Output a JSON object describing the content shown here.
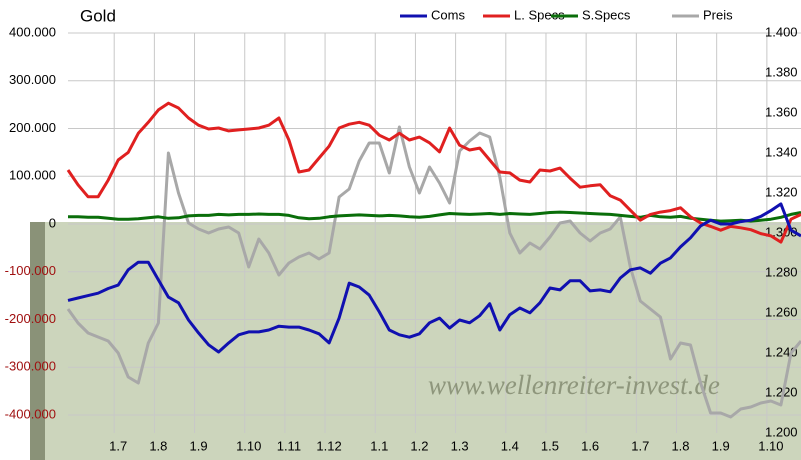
{
  "chart_data": {
    "type": "line",
    "title": "Gold",
    "watermark": "www.wellenreiter-invest.de",
    "categories": [
      null,
      null,
      null,
      null,
      null,
      "1.7",
      null,
      null,
      null,
      "1.8",
      null,
      null,
      null,
      "1.9",
      null,
      null,
      null,
      null,
      "1.10",
      null,
      null,
      null,
      "1.11",
      null,
      null,
      null,
      "1.12",
      null,
      null,
      null,
      null,
      "1.1",
      null,
      null,
      null,
      "1.2",
      null,
      null,
      null,
      "1.3",
      null,
      null,
      null,
      null,
      "1.4",
      null,
      null,
      null,
      "1.5",
      null,
      null,
      null,
      "1.6",
      null,
      null,
      null,
      null,
      "1.7",
      null,
      null,
      null,
      "1.8",
      null,
      null,
      null,
      "1.9",
      null,
      null,
      null,
      null,
      "1.10",
      null,
      null,
      null
    ],
    "series": [
      {
        "name": "Coms",
        "color": "#1010b0",
        "values": [
          -160000,
          -155000,
          -150000,
          -145000,
          -135000,
          -128000,
          -96000,
          -80000,
          -80000,
          -117000,
          -153000,
          -165000,
          -201000,
          -228000,
          -253000,
          -268000,
          -249000,
          -232000,
          -226000,
          -226000,
          -222000,
          -214000,
          -216000,
          -216000,
          -222000,
          -230000,
          -249000,
          -197000,
          -124000,
          -132000,
          -149000,
          -184000,
          -222000,
          -232000,
          -237000,
          -230000,
          -207000,
          -197000,
          -218000,
          -201000,
          -207000,
          -192000,
          -167000,
          -222000,
          -190000,
          -176000,
          -186000,
          -165000,
          -134000,
          -138000,
          -119000,
          -119000,
          -140000,
          -138000,
          -142000,
          -113000,
          -96000,
          -92000,
          -103000,
          -82000,
          -71000,
          -48000,
          -29000,
          -4000,
          8000,
          0,
          0,
          5000,
          8000,
          16000,
          28000,
          42000,
          -13000,
          -25000
        ]
      },
      {
        "name": "L. Specs",
        "color": "#e02020",
        "values": [
          113000,
          82000,
          57000,
          57000,
          92000,
          134000,
          150000,
          190000,
          213000,
          239000,
          253000,
          243000,
          222000,
          207000,
          199000,
          201000,
          195000,
          197000,
          199000,
          201000,
          207000,
          222000,
          176000,
          109000,
          113000,
          138000,
          163000,
          201000,
          209000,
          213000,
          207000,
          186000,
          176000,
          190000,
          176000,
          182000,
          170000,
          151000,
          201000,
          165000,
          155000,
          159000,
          134000,
          109000,
          107000,
          92000,
          88000,
          113000,
          111000,
          117000,
          96000,
          77000,
          80000,
          82000,
          59000,
          50000,
          29000,
          8000,
          20000,
          25000,
          28000,
          34000,
          15000,
          2000,
          -5000,
          -13000,
          -5000,
          -8000,
          -12000,
          -20000,
          -25000,
          -38000,
          10000,
          20000
        ]
      },
      {
        "name": "S.Specs",
        "color": "#0a6e0a",
        "values": [
          15000,
          15000,
          14000,
          14000,
          12000,
          10000,
          10000,
          11000,
          13000,
          15000,
          12000,
          13000,
          17000,
          18000,
          18000,
          20000,
          19000,
          20000,
          20000,
          21000,
          20000,
          20000,
          18000,
          13000,
          11000,
          12000,
          15000,
          17000,
          18000,
          19000,
          18000,
          17000,
          18000,
          17000,
          15000,
          14000,
          16000,
          19000,
          22000,
          21000,
          20000,
          21000,
          22000,
          20000,
          22000,
          21000,
          20000,
          22000,
          24000,
          25000,
          24000,
          23000,
          22000,
          21000,
          20000,
          18000,
          16000,
          14000,
          18000,
          15000,
          14000,
          16000,
          12000,
          10000,
          8000,
          6000,
          7000,
          8000,
          6000,
          8000,
          10000,
          14000,
          20000,
          24000
        ]
      },
      {
        "name": "Preis",
        "color": "#a8a8a8",
        "axis": "y2",
        "values": [
          1262,
          1255,
          1250,
          1248,
          1246,
          1240,
          1228,
          1225,
          1245,
          1255,
          1340,
          1320,
          1305,
          1302,
          1300,
          1302,
          1303,
          1300,
          1283,
          1297,
          1290,
          1279,
          1285,
          1288,
          1290,
          1287,
          1290,
          1318,
          1322,
          1336,
          1345,
          1345,
          1330,
          1353,
          1333,
          1320,
          1333,
          1325,
          1315,
          1341,
          1346,
          1350,
          1348,
          1328,
          1300,
          1290,
          1295,
          1292,
          1298,
          1305,
          1306,
          1300,
          1296,
          1300,
          1302,
          1308,
          1283,
          1266,
          1262,
          1258,
          1237,
          1245,
          1244,
          1225,
          1210,
          1210,
          1208,
          1212,
          1213,
          1215,
          1216,
          1214,
          1240,
          1246
        ]
      }
    ],
    "ylim": [
      -400000,
      400000
    ],
    "yticks": [
      {
        "value": -400000,
        "label": "-400.000"
      },
      {
        "value": -300000,
        "label": "-300.000"
      },
      {
        "value": -200000,
        "label": "-200.000"
      },
      {
        "value": -100000,
        "label": "-100.000"
      },
      0,
      {
        "value": 100000,
        "label": "100.000"
      },
      {
        "value": 200000,
        "label": "200.000"
      },
      {
        "value": 300000,
        "label": "300.000"
      },
      {
        "value": 400000,
        "label": "400.000"
      }
    ],
    "y2lim": [
      1200,
      1400
    ],
    "y2ticks": [
      {
        "value": 1200,
        "label": "1.200"
      },
      {
        "value": 1220,
        "label": "1.220"
      },
      {
        "value": 1240,
        "label": "1.240"
      },
      {
        "value": 1260,
        "label": "1.260"
      },
      {
        "value": 1280,
        "label": "1.280"
      },
      {
        "value": 1300,
        "label": "1.300"
      },
      {
        "value": 1320,
        "label": "1.320"
      },
      {
        "value": 1340,
        "label": "1.340"
      },
      {
        "value": 1360,
        "label": "1.360"
      },
      {
        "value": 1380,
        "label": "1.380"
      },
      {
        "value": 1400,
        "label": "1.400"
      }
    ],
    "grid": true,
    "legend": "top"
  }
}
